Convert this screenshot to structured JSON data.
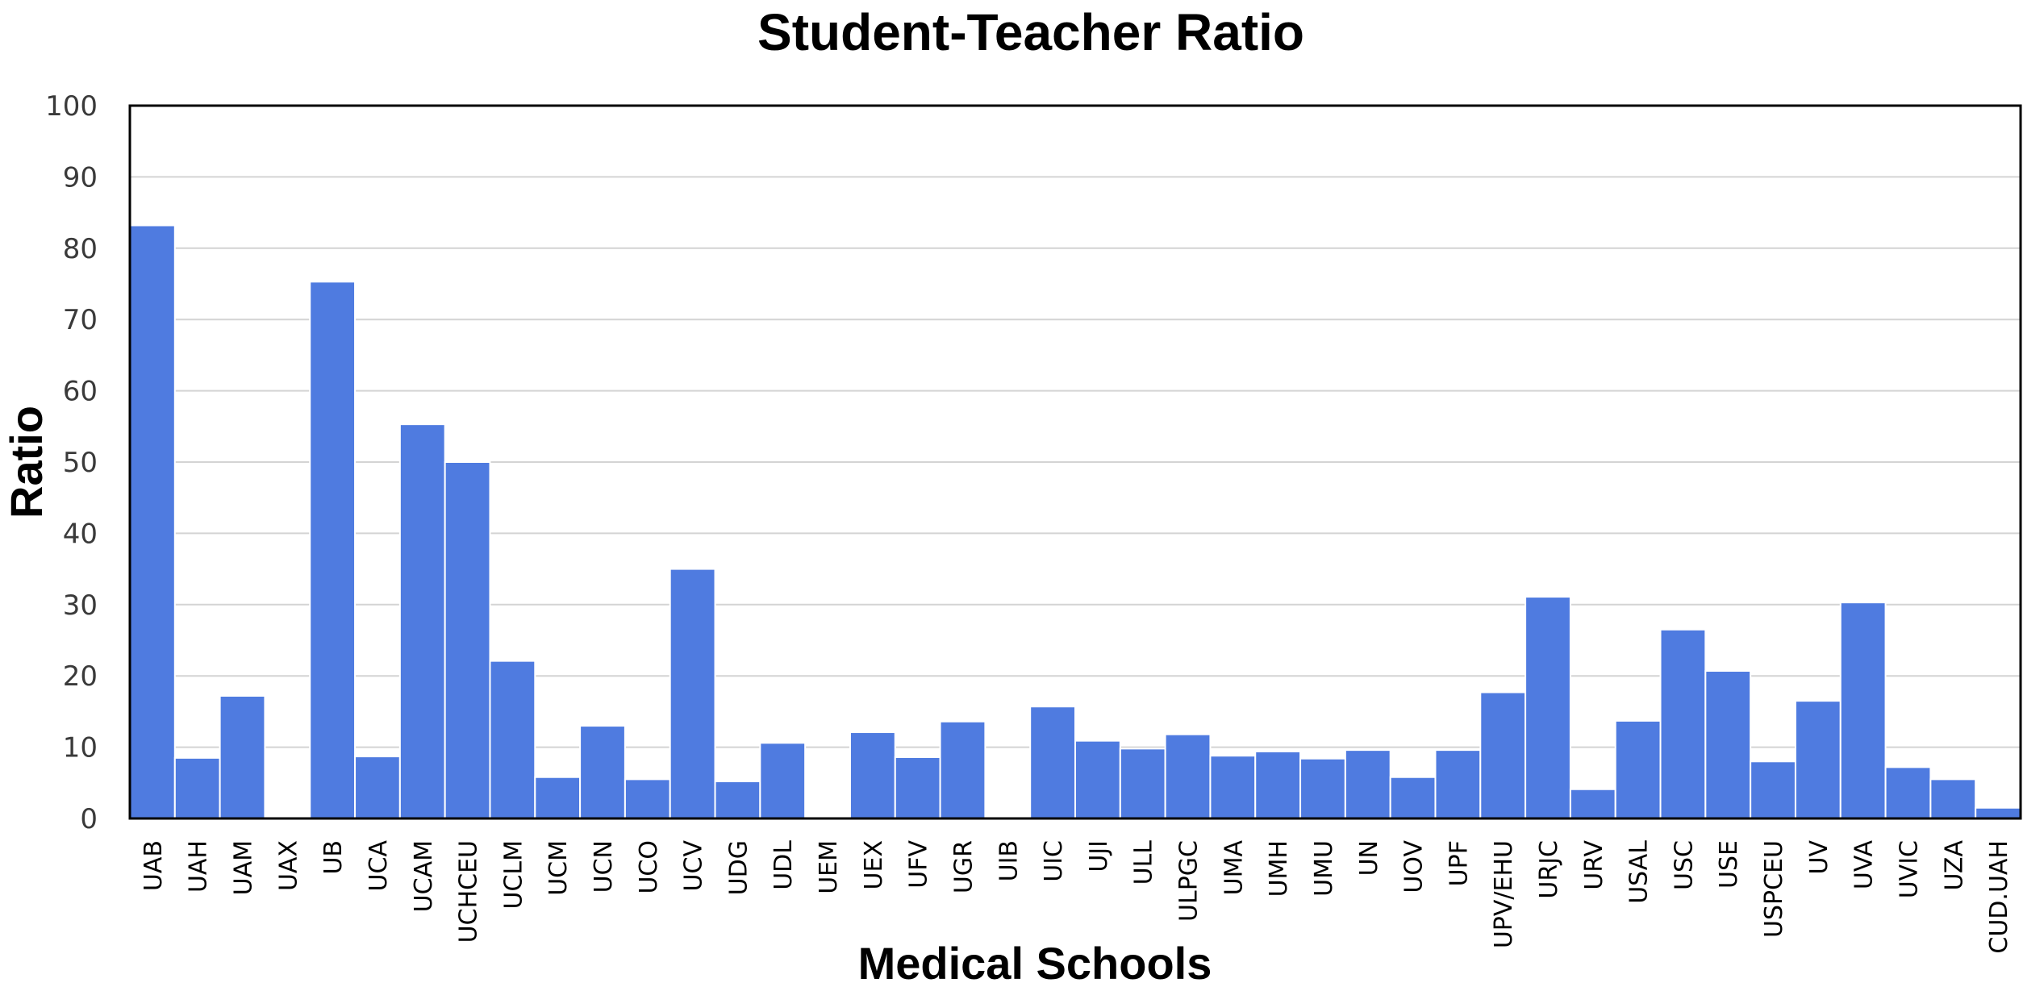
{
  "chart_data": {
    "type": "bar",
    "title": "Student-Teacher Ratio",
    "xlabel": "Medical Schools",
    "ylabel": "Ratio",
    "ylim": [
      0,
      100
    ],
    "yticks": [
      0,
      10,
      20,
      30,
      40,
      50,
      60,
      70,
      80,
      90,
      100
    ],
    "grid": true,
    "legend": "none",
    "bar_color": "#4F7BE0",
    "categories": [
      "UAB",
      "UAH",
      "UAM",
      "UAX",
      "UB",
      "UCA",
      "UCAM",
      "UCHCEU",
      "UCLM",
      "UCM",
      "UCN",
      "UCO",
      "UCV",
      "UDG",
      "UDL",
      "UEM",
      "UEX",
      "UFV",
      "UGR",
      "UIB",
      "UIC",
      "UJI",
      "ULL",
      "ULPGC",
      "UMA",
      "UMH",
      "UMU",
      "UN",
      "UOV",
      "UPF",
      "UPV/EHU",
      "URJC",
      "URV",
      "USAL",
      "USC",
      "USE",
      "USPCEU",
      "UV",
      "UVA",
      "UVIC",
      "UZA",
      "CUD.UAH"
    ],
    "values": [
      83.2,
      8.5,
      17.2,
      0,
      75.3,
      8.7,
      55.3,
      50,
      22.1,
      5.8,
      13,
      5.5,
      35,
      5.2,
      10.6,
      0,
      12.1,
      8.6,
      13.6,
      0,
      15.7,
      10.9,
      9.8,
      11.8,
      8.8,
      9.4,
      8.4,
      9.6,
      5.8,
      9.6,
      17.7,
      31.1,
      4.1,
      13.7,
      26.5,
      20.7,
      8,
      16.5,
      30.3,
      7.2,
      5.5,
      1.5
    ]
  }
}
